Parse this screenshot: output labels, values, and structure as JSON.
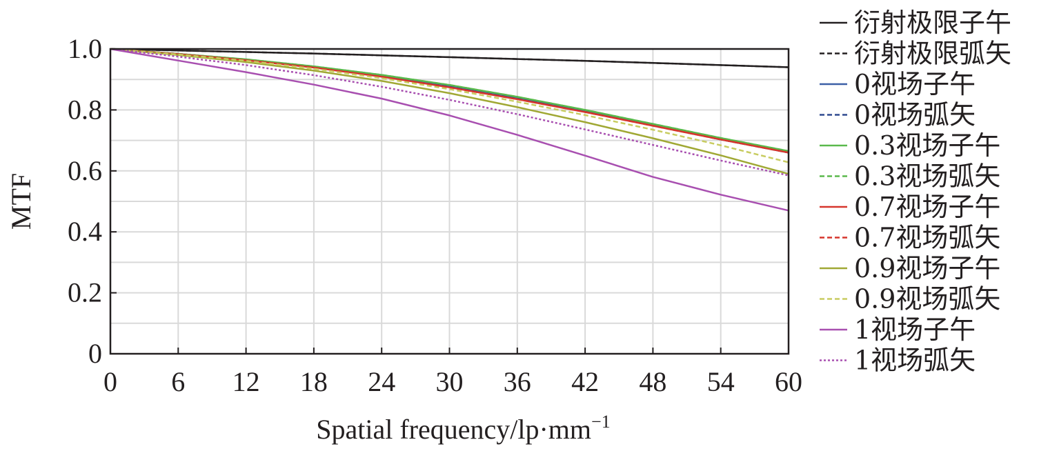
{
  "chart_data": {
    "type": "line",
    "xlabel": "Spatial frequency/lp·mm",
    "xlabel_superscript": "−1",
    "ylabel": "MTF",
    "xlim": [
      0,
      60
    ],
    "ylim": [
      0,
      1
    ],
    "xticks": [
      "0",
      "6",
      "12",
      "18",
      "24",
      "30",
      "36",
      "42",
      "48",
      "54",
      "60"
    ],
    "yticks": [
      "0",
      "0.2",
      "0.4",
      "0.6",
      "0.8",
      "1.0"
    ],
    "grid": true,
    "legend_position": "right",
    "x": [
      0,
      6,
      12,
      18,
      24,
      30,
      36,
      42,
      48,
      54,
      60
    ],
    "series": [
      {
        "name": "衍射极限子午",
        "color": "#231f20",
        "dash": "solid",
        "values": [
          1.0,
          0.995,
          0.99,
          0.985,
          0.979,
          0.973,
          0.967,
          0.961,
          0.954,
          0.947,
          0.94
        ]
      },
      {
        "name": "衍射极限弧矢",
        "color": "#231f20",
        "dash": "dashed",
        "values": [
          1.0,
          0.995,
          0.99,
          0.985,
          0.979,
          0.973,
          0.967,
          0.961,
          0.954,
          0.947,
          0.94
        ]
      },
      {
        "name": "0视场子午",
        "color": "#3b5fa6",
        "dash": "solid",
        "values": [
          1.0,
          0.984,
          0.965,
          0.941,
          0.912,
          0.878,
          0.84,
          0.797,
          0.75,
          0.703,
          0.66
        ]
      },
      {
        "name": "0视场弧矢",
        "color": "#2f4a8f",
        "dash": "dashed",
        "values": [
          1.0,
          0.984,
          0.965,
          0.941,
          0.912,
          0.878,
          0.84,
          0.797,
          0.75,
          0.703,
          0.66
        ]
      },
      {
        "name": "0.3视场子午",
        "color": "#5ab94c",
        "dash": "solid",
        "values": [
          1.0,
          0.984,
          0.966,
          0.943,
          0.915,
          0.882,
          0.843,
          0.8,
          0.754,
          0.708,
          0.665
        ]
      },
      {
        "name": "0.3视场弧矢",
        "color": "#5ab94c",
        "dash": "dashed",
        "values": [
          1.0,
          0.984,
          0.966,
          0.943,
          0.915,
          0.882,
          0.843,
          0.8,
          0.754,
          0.708,
          0.665
        ]
      },
      {
        "name": "0.7视场子午",
        "color": "#d6352c",
        "dash": "solid",
        "values": [
          1.0,
          0.983,
          0.963,
          0.939,
          0.909,
          0.874,
          0.835,
          0.793,
          0.748,
          0.703,
          0.66
        ]
      },
      {
        "name": "0.7视场弧矢",
        "color": "#d6352c",
        "dash": "dashed",
        "values": [
          1.0,
          0.983,
          0.963,
          0.939,
          0.909,
          0.874,
          0.835,
          0.793,
          0.748,
          0.703,
          0.66
        ]
      },
      {
        "name": "0.9视场子午",
        "color": "#a0a834",
        "dash": "solid",
        "values": [
          1.0,
          0.98,
          0.957,
          0.929,
          0.895,
          0.855,
          0.809,
          0.76,
          0.707,
          0.651,
          0.59
        ]
      },
      {
        "name": "0.9视场弧矢",
        "color": "#c8cc60",
        "dash": "dashed",
        "values": [
          1.0,
          0.982,
          0.961,
          0.935,
          0.904,
          0.868,
          0.827,
          0.783,
          0.735,
          0.684,
          0.628
        ]
      },
      {
        "name": "1视场子午",
        "color": "#a84fb0",
        "dash": "solid",
        "values": [
          1.0,
          0.962,
          0.924,
          0.883,
          0.837,
          0.782,
          0.718,
          0.65,
          0.58,
          0.522,
          0.47
        ]
      },
      {
        "name": "1视场弧矢",
        "color": "#a84fb0",
        "dash": "dotted",
        "values": [
          1.0,
          0.975,
          0.947,
          0.914,
          0.876,
          0.833,
          0.786,
          0.736,
          0.685,
          0.634,
          0.585
        ]
      }
    ]
  }
}
